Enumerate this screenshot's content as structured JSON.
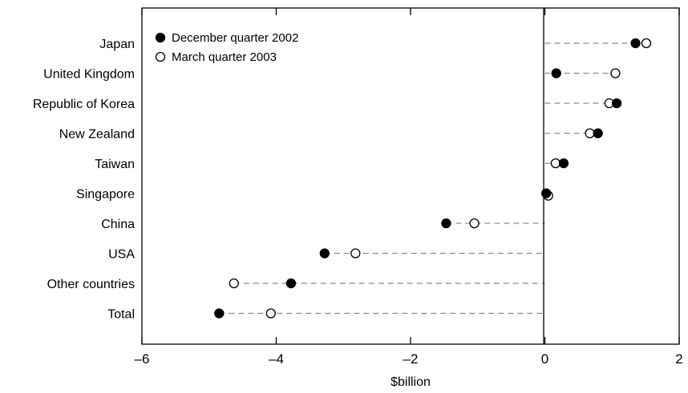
{
  "chart_data": {
    "type": "scatter",
    "title": "",
    "xlabel": "$billion",
    "ylabel": "",
    "xlim": [
      -6,
      2
    ],
    "xticks": [
      -6,
      -4,
      -2,
      0,
      2
    ],
    "xtick_labels": [
      "–6",
      "–4",
      "–2",
      "0",
      "2"
    ],
    "grid": false,
    "legend_position": "top-left",
    "categories": [
      "Japan",
      "United Kingdom",
      "Republic of Korea",
      "New Zealand",
      "Taiwan",
      "Singapore",
      "China",
      "USA",
      "Other countries",
      "Total"
    ],
    "series": [
      {
        "name": "December quarter 2002",
        "marker": "filled-circle",
        "color": "#000000",
        "values": [
          1.35,
          0.17,
          1.07,
          0.79,
          0.28,
          0.02,
          -1.47,
          -3.28,
          -3.78,
          -4.85
        ]
      },
      {
        "name": "March quarter 2003",
        "marker": "open-circle",
        "color": "#000000",
        "values": [
          1.51,
          1.05,
          0.96,
          0.67,
          0.16,
          0.05,
          -1.05,
          -2.82,
          -4.63,
          -4.08
        ]
      }
    ],
    "connector_style": "dashed-grey"
  }
}
